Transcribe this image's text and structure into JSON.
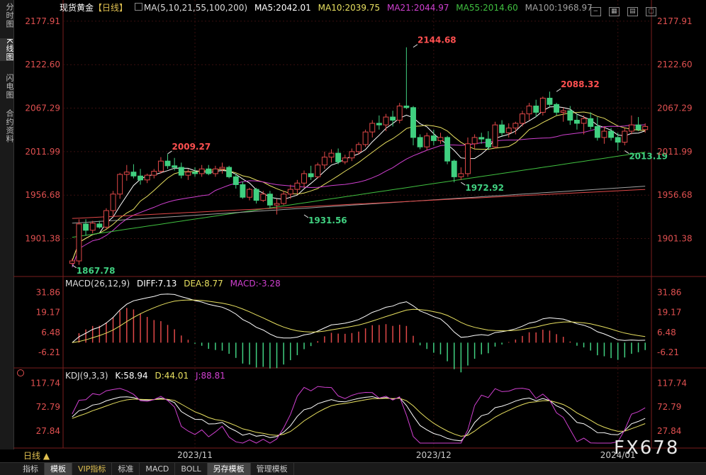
{
  "sidebar": {
    "tabs": [
      "分时图",
      "K线图",
      "闪电图",
      "合约资料"
    ],
    "active": 1
  },
  "header": {
    "symbol": "现货黄金",
    "period_tag": "【日线】",
    "ma_label": "MA(5,10,21,55,100,200)",
    "ma5": "MA5:2042.01",
    "ma10": "MA10:2039.75",
    "ma21": "MA21:2044.97",
    "ma55": "MA55:2014.60",
    "ma100": "MA100:1968.97"
  },
  "macd_legend": {
    "label": "MACD(26,12,9)",
    "diff": "DIFF:7.13",
    "dea": "DEA:8.77",
    "macd": "MACD:-3.28"
  },
  "kdj_legend": {
    "label": "KDJ(9,3,3)",
    "k": "K:58.94",
    "d": "D:44.01",
    "j": "J:88.81"
  },
  "period_button": "日线 ▲",
  "bottom_tabs": [
    "指标",
    "模板",
    "VIP指标",
    "标准",
    "MACD",
    "BOLL",
    "另存模板",
    "管理模板"
  ],
  "watermark": "FX678",
  "colors": {
    "up": "#e04848",
    "down": "#40d080",
    "ma5": "#ffffff",
    "ma10": "#e8e060",
    "ma21": "#d040d0",
    "ma55": "#40c040",
    "ma100": "#a0a0a0",
    "ma200": "#e04848"
  },
  "chart_data": [
    {
      "type": "candlestick",
      "price_ticks": [
        "2177.91",
        "2122.60",
        "2067.29",
        "2011.99",
        "1956.68",
        "1901.38"
      ],
      "x_labels": [
        "2023/11",
        "2023/12",
        "2024/01"
      ],
      "annotations": [
        {
          "text": "2144.68",
          "index": 50,
          "value": 2144.68,
          "kind": "high"
        },
        {
          "text": "2088.32",
          "index": 71,
          "value": 2088.32,
          "kind": "high"
        },
        {
          "text": "2009.27",
          "index": 14,
          "value": 2009.27,
          "kind": "high"
        },
        {
          "text": "1972.92",
          "index": 57,
          "value": 1972.92,
          "kind": "low"
        },
        {
          "text": "1931.56",
          "index": 34,
          "value": 1931.56,
          "kind": "low"
        },
        {
          "text": "2013.19",
          "index": 81,
          "value": 2013.19,
          "kind": "low"
        },
        {
          "text": "1867.78",
          "index": 0,
          "value": 1867.78,
          "kind": "low"
        }
      ],
      "ohlc": [
        [
          1870,
          1876,
          1868,
          1873
        ],
        [
          1873,
          1926,
          1868,
          1920
        ],
        [
          1920,
          1926,
          1905,
          1912
        ],
        [
          1912,
          1924,
          1908,
          1921
        ],
        [
          1920,
          1924,
          1914,
          1916
        ],
        [
          1916,
          1940,
          1914,
          1937
        ],
        [
          1937,
          1962,
          1930,
          1958
        ],
        [
          1958,
          1985,
          1952,
          1983
        ],
        [
          1983,
          1995,
          1975,
          1986
        ],
        [
          1986,
          1996,
          1978,
          1981
        ],
        [
          1981,
          1990,
          1970,
          1976
        ],
        [
          1976,
          1984,
          1972,
          1982
        ],
        [
          1982,
          1990,
          1978,
          1987
        ],
        [
          1987,
          2005,
          1984,
          2000
        ],
        [
          2000,
          2009,
          1990,
          1994
        ],
        [
          1994,
          2004,
          1988,
          1992
        ],
        [
          1992,
          1998,
          1978,
          1982
        ],
        [
          1982,
          1990,
          1976,
          1986
        ],
        [
          1986,
          1992,
          1980,
          1984
        ],
        [
          1984,
          1995,
          1980,
          1990
        ],
        [
          1990,
          1995,
          1982,
          1984
        ],
        [
          1984,
          1994,
          1980,
          1990
        ],
        [
          1990,
          1998,
          1984,
          1992
        ],
        [
          1992,
          1994,
          1978,
          1980
        ],
        [
          1980,
          1984,
          1965,
          1970
        ],
        [
          1970,
          1974,
          1952,
          1954
        ],
        [
          1954,
          1966,
          1950,
          1964
        ],
        [
          1964,
          1966,
          1946,
          1950
        ],
        [
          1950,
          1962,
          1948,
          1958
        ],
        [
          1958,
          1962,
          1940,
          1944
        ],
        [
          1944,
          1952,
          1932,
          1946
        ],
        [
          1946,
          1962,
          1944,
          1958
        ],
        [
          1958,
          1970,
          1952,
          1964
        ],
        [
          1964,
          1976,
          1958,
          1972
        ],
        [
          1972,
          1988,
          1966,
          1984
        ],
        [
          1984,
          1994,
          1976,
          1980
        ],
        [
          1980,
          1998,
          1978,
          1995
        ],
        [
          1995,
          2012,
          1990,
          2005
        ],
        [
          2005,
          2015,
          1998,
          2010
        ],
        [
          2010,
          2016,
          1996,
          1999
        ],
        [
          1999,
          2008,
          1996,
          2004
        ],
        [
          2004,
          2016,
          2000,
          2012
        ],
        [
          2012,
          2024,
          2008,
          2021
        ],
        [
          2021,
          2040,
          2018,
          2037
        ],
        [
          2037,
          2052,
          2030,
          2048
        ],
        [
          2048,
          2058,
          2040,
          2046
        ],
        [
          2046,
          2060,
          2038,
          2056
        ],
        [
          2056,
          2064,
          2044,
          2052
        ],
        [
          2052,
          2074,
          2048,
          2070
        ],
        [
          2070,
          2144.68,
          2066,
          2068
        ],
        [
          2068,
          2070,
          2020,
          2030
        ],
        [
          2030,
          2034,
          2015,
          2018
        ],
        [
          2018,
          2036,
          2014,
          2032
        ],
        [
          2032,
          2040,
          2020,
          2026
        ],
        [
          2026,
          2036,
          2022,
          2030
        ],
        [
          2030,
          2032,
          1996,
          2000
        ],
        [
          2000,
          2002,
          1972.92,
          1980
        ],
        [
          1980,
          1992,
          1976,
          1984
        ],
        [
          1984,
          2030,
          1980,
          2022
        ],
        [
          2022,
          2034,
          2016,
          2030
        ],
        [
          2030,
          2036,
          2022,
          2028
        ],
        [
          2028,
          2038,
          2014,
          2018
        ],
        [
          2018,
          2050,
          2016,
          2046
        ],
        [
          2046,
          2052,
          2032,
          2036
        ],
        [
          2036,
          2048,
          2030,
          2042
        ],
        [
          2042,
          2050,
          2034,
          2048
        ],
        [
          2048,
          2064,
          2044,
          2060
        ],
        [
          2060,
          2074,
          2052,
          2070
        ],
        [
          2070,
          2078,
          2056,
          2062
        ],
        [
          2062,
          2082,
          2058,
          2080
        ],
        [
          2080,
          2088.32,
          2068,
          2072
        ],
        [
          2072,
          2074,
          2058,
          2062
        ],
        [
          2062,
          2068,
          2050,
          2064
        ],
        [
          2064,
          2070,
          2046,
          2052
        ],
        [
          2052,
          2060,
          2040,
          2048
        ],
        [
          2048,
          2058,
          2034,
          2054
        ],
        [
          2054,
          2062,
          2040,
          2044
        ],
        [
          2044,
          2056,
          2026,
          2030
        ],
        [
          2030,
          2044,
          2022,
          2038
        ],
        [
          2038,
          2042,
          2026,
          2030
        ],
        [
          2030,
          2036,
          2013.19,
          2024
        ],
        [
          2024,
          2042,
          2020,
          2038
        ],
        [
          2038,
          2058,
          2034,
          2046
        ],
        [
          2046,
          2056,
          2038,
          2040
        ],
        [
          2040,
          2048,
          2036,
          2044
        ]
      ]
    },
    {
      "type": "bar",
      "name": "MACD",
      "value_ticks": [
        "31.86",
        "19.17",
        "6.48",
        "-6.21"
      ]
    },
    {
      "type": "line",
      "name": "KDJ",
      "value_ticks": [
        "117.74",
        "72.79",
        "27.84"
      ]
    }
  ]
}
